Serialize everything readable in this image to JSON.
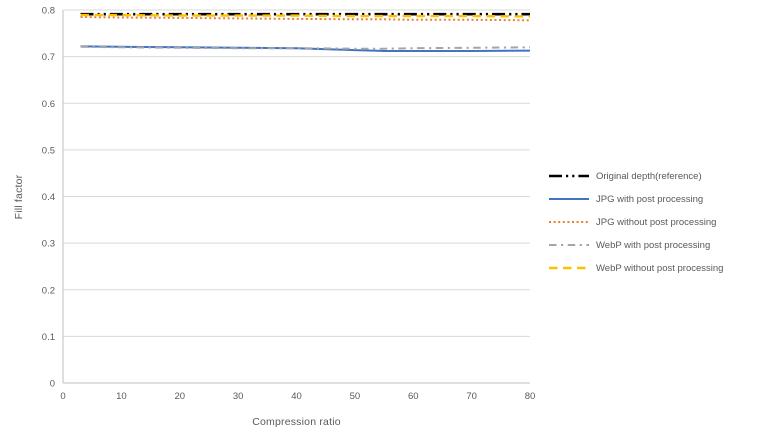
{
  "chart_data": {
    "type": "line",
    "title": "",
    "xlabel": "Compression ratio",
    "ylabel": "Fill factor",
    "xlim": [
      0,
      80
    ],
    "ylim": [
      0,
      0.8
    ],
    "x_ticks": [
      "0",
      "10",
      "20",
      "30",
      "40",
      "50",
      "60",
      "70",
      "80"
    ],
    "y_ticks": [
      "0",
      "0.1",
      "0.2",
      "0.3",
      "0.4",
      "0.5",
      "0.6",
      "0.7",
      "0.8"
    ],
    "grid": true,
    "legend_position": "right",
    "x": [
      3,
      10,
      20,
      30,
      40,
      50,
      55,
      60,
      70,
      80
    ],
    "series": [
      {
        "name": "Original depth(reference)",
        "color": "#000000",
        "dash": "dashdotdot",
        "width": 2.6,
        "values": [
          0.791,
          0.791,
          0.791,
          0.791,
          0.791,
          0.791,
          0.791,
          0.791,
          0.791,
          0.791
        ]
      },
      {
        "name": "JPG with post processing",
        "color": "#4472C4",
        "dash": "solid",
        "width": 2,
        "values": [
          0.722,
          0.721,
          0.72,
          0.719,
          0.718,
          0.714,
          0.712,
          0.712,
          0.712,
          0.713
        ]
      },
      {
        "name": "JPG without post processing",
        "color": "#ED7D31",
        "dash": "dot",
        "width": 2,
        "values": [
          0.785,
          0.784,
          0.783,
          0.782,
          0.781,
          0.78,
          0.78,
          0.779,
          0.779,
          0.778
        ]
      },
      {
        "name": "WebP with post processing",
        "color": "#A5A5A5",
        "dash": "dashdot",
        "width": 2,
        "values": [
          0.721,
          0.72,
          0.719,
          0.718,
          0.718,
          0.717,
          0.717,
          0.718,
          0.719,
          0.72
        ]
      },
      {
        "name": "WebP without post processing",
        "color": "#FFC000",
        "dash": "dash",
        "width": 2.4,
        "values": [
          0.789,
          0.789,
          0.788,
          0.788,
          0.788,
          0.787,
          0.787,
          0.787,
          0.787,
          0.786
        ]
      }
    ]
  },
  "styles": {
    "background": "#FFFFFF",
    "gridline_color": "#D9D9D9",
    "axis_color": "#BFBFBF",
    "tick_text_color": "#595959",
    "axis_title_color": "#595959",
    "legend_text_color": "#595959"
  }
}
